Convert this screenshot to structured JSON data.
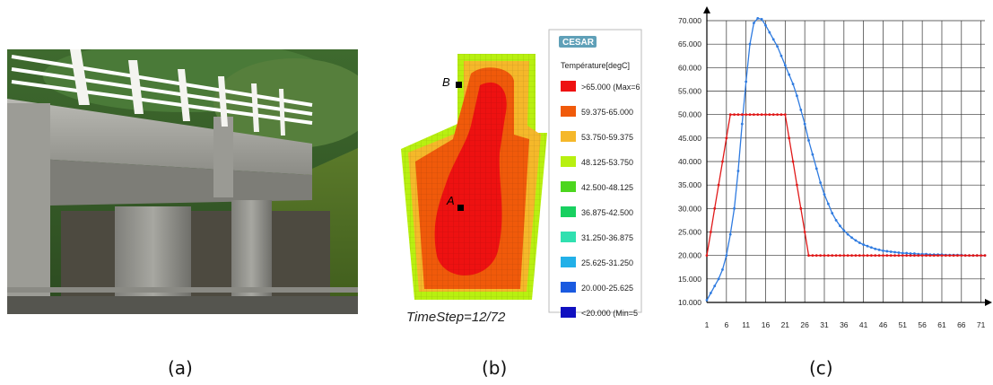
{
  "captions": {
    "a": "(a)",
    "b": "(b)",
    "c": "(c)"
  },
  "fea": {
    "brand": "CESAR",
    "legend_title": "Température[degC]",
    "legend": [
      {
        "label": ">65.000 (Max=6",
        "color": "#ee1111"
      },
      {
        "label": "59.375-65.000",
        "color": "#f05a0a"
      },
      {
        "label": "53.750-59.375",
        "color": "#f5b82a"
      },
      {
        "label": "48.125-53.750",
        "color": "#b8f010"
      },
      {
        "label": "42.500-48.125",
        "color": "#4cd61e"
      },
      {
        "label": "36.875-42.500",
        "color": "#18d060"
      },
      {
        "label": "31.250-36.875",
        "color": "#30e0b0"
      },
      {
        "label": "25.625-31.250",
        "color": "#22b0e8"
      },
      {
        "label": "20.000-25.625",
        "color": "#1a5ae0"
      },
      {
        "label": "<20.000 (Min=5",
        "color": "#1010c0"
      }
    ],
    "point_a": "A",
    "point_b": "B",
    "timestep": "TimeStep=12/72"
  },
  "chart_data": {
    "type": "line",
    "x_ticks": [
      1,
      6,
      11,
      16,
      21,
      26,
      31,
      36,
      41,
      46,
      51,
      56,
      61,
      66,
      71
    ],
    "y_ticks": [
      "10.000",
      "15.000",
      "20.000",
      "25.000",
      "30.000",
      "35.000",
      "40.000",
      "45.000",
      "50.000",
      "55.000",
      "60.000",
      "65.000",
      "70.000"
    ],
    "xlim": [
      1,
      72
    ],
    "ylim": [
      10,
      70
    ],
    "grid": true,
    "series": [
      {
        "color": "#2f7be0",
        "x": [
          1,
          2,
          3,
          4,
          5,
          6,
          7,
          8,
          9,
          10,
          11,
          12,
          13,
          14,
          15,
          16,
          17,
          18,
          19,
          20,
          21,
          22,
          23,
          24,
          25,
          26,
          27,
          28,
          29,
          30,
          31,
          32,
          33,
          34,
          35,
          36,
          37,
          38,
          39,
          40,
          41,
          42,
          43,
          44,
          45,
          46,
          47,
          48,
          49,
          50,
          51,
          52,
          53,
          54,
          55,
          56,
          57,
          58,
          59,
          60,
          61,
          62,
          63,
          64,
          65,
          66,
          67,
          68,
          69,
          70,
          71,
          72
        ],
        "y": [
          10.5,
          12,
          13.5,
          15,
          17,
          20,
          24.5,
          30,
          38,
          48,
          57,
          65,
          69.5,
          70.5,
          70.3,
          69,
          67.5,
          66,
          64.5,
          62.5,
          60.5,
          58.5,
          56.5,
          54,
          51,
          48,
          44.5,
          41.5,
          38.5,
          35.5,
          33,
          31,
          29,
          27.5,
          26.3,
          25.3,
          24.5,
          23.8,
          23.2,
          22.7,
          22.3,
          22,
          21.7,
          21.4,
          21.2,
          21,
          20.9,
          20.8,
          20.7,
          20.6,
          20.5,
          20.5,
          20.4,
          20.4,
          20.3,
          20.3,
          20.3,
          20.2,
          20.2,
          20.2,
          20.2,
          20.1,
          20.1,
          20.1,
          20.1,
          20.1,
          20,
          20,
          20,
          20,
          20,
          20
        ]
      },
      {
        "color": "#e01818",
        "x": [
          1,
          2,
          3,
          4,
          5,
          6,
          7,
          8,
          9,
          10,
          11,
          12,
          13,
          14,
          15,
          16,
          17,
          18,
          19,
          20,
          21,
          22,
          23,
          24,
          25,
          26,
          27,
          28,
          29,
          30,
          31,
          32,
          33,
          34,
          35,
          36,
          37,
          38,
          39,
          40,
          41,
          42,
          43,
          44,
          45,
          46,
          47,
          48,
          49,
          50,
          51,
          52,
          53,
          54,
          55,
          56,
          57,
          58,
          59,
          60,
          61,
          62,
          63,
          64,
          65,
          66,
          67,
          68,
          69,
          70,
          71,
          72
        ],
        "y": [
          20,
          25,
          30,
          35,
          40,
          45,
          50,
          50,
          50,
          50,
          50,
          50,
          50,
          50,
          50,
          50,
          50,
          50,
          50,
          50,
          50,
          45,
          40,
          35,
          30,
          25,
          20,
          20,
          20,
          20,
          20,
          20,
          20,
          20,
          20,
          20,
          20,
          20,
          20,
          20,
          20,
          20,
          20,
          20,
          20,
          20,
          20,
          20,
          20,
          20,
          20,
          20,
          20,
          20,
          20,
          20,
          20,
          20,
          20,
          20,
          20,
          20,
          20,
          20,
          20,
          20,
          20,
          20,
          20,
          20,
          20,
          20
        ]
      }
    ]
  }
}
